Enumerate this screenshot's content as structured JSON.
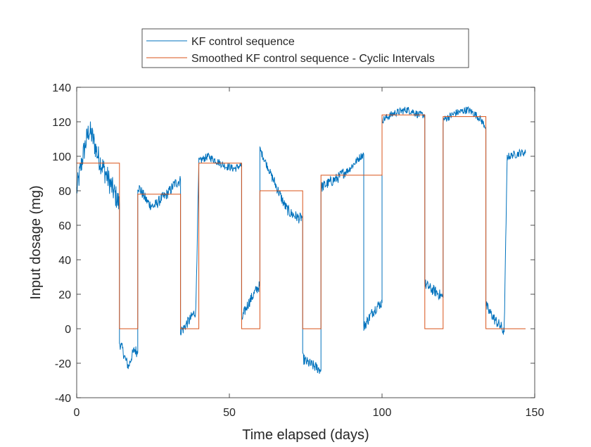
{
  "chart_data": {
    "type": "line",
    "xlabel": "Time elapsed (days)",
    "ylabel": "Input dosage (mg)",
    "xlim": [
      0,
      150
    ],
    "ylim": [
      -40,
      140
    ],
    "xticks": [
      0,
      50,
      100,
      150
    ],
    "yticks": [
      -40,
      -20,
      0,
      20,
      40,
      60,
      80,
      100,
      120,
      140
    ],
    "grid": false,
    "legend_position": "top-center",
    "series": [
      {
        "name": "KF control sequence",
        "color": "#0072BD",
        "noise": true,
        "x": [
          0,
          1,
          2,
          3,
          4,
          5,
          6,
          7,
          8,
          9,
          10,
          11,
          12,
          13,
          14,
          14.01,
          15,
          16,
          17,
          18,
          19,
          20,
          20.01,
          21,
          22,
          23,
          24,
          25,
          26,
          27,
          28,
          29,
          30,
          31,
          32,
          33,
          34,
          34.01,
          35,
          36,
          37,
          38,
          39,
          40,
          40.01,
          41,
          42,
          43,
          44,
          45,
          46,
          47,
          48,
          49,
          50,
          51,
          52,
          53,
          54,
          54.01,
          55,
          56,
          57,
          58,
          59,
          60,
          60.01,
          61,
          62,
          63,
          64,
          65,
          66,
          67,
          68,
          69,
          70,
          71,
          72,
          73,
          74,
          74.01,
          75,
          76,
          77,
          78,
          79,
          80,
          80.01,
          81,
          82,
          83,
          84,
          85,
          86,
          87,
          88,
          89,
          90,
          91,
          92,
          93,
          94,
          94.01,
          95,
          96,
          97,
          98,
          99,
          100,
          100.01,
          102,
          104,
          106,
          108,
          110,
          112,
          114,
          114.01,
          116,
          118,
          120,
          120.01,
          122,
          124,
          126,
          128,
          130,
          132,
          134,
          134.01,
          135,
          136,
          137,
          138,
          139,
          140,
          140.01,
          141,
          142,
          143,
          144,
          145,
          146,
          147
        ],
        "y": [
          80,
          90,
          100,
          108,
          115,
          112,
          106,
          100,
          96,
          92,
          88,
          84,
          80,
          76,
          72,
          -8,
          -12,
          -18,
          -22,
          -16,
          -12,
          -14,
          83,
          80,
          77,
          74,
          72,
          71,
          72,
          74,
          76,
          77,
          79,
          81,
          84,
          85,
          86,
          -1,
          0,
          3,
          5,
          8,
          10,
          96,
          97,
          98,
          99,
          100,
          99,
          98,
          97,
          96,
          95,
          94,
          94,
          93,
          93,
          94,
          95,
          5,
          10,
          14,
          17,
          20,
          23,
          25,
          104,
          100,
          96,
          92,
          88,
          84,
          80,
          76,
          72,
          69,
          67,
          66,
          65,
          64,
          65,
          -17,
          -19,
          -20,
          -21,
          -22,
          -23,
          -24,
          82,
          83,
          84,
          85,
          86,
          87,
          88,
          90,
          91,
          92,
          94,
          96,
          98,
          100,
          101,
          1,
          4,
          7,
          10,
          12,
          14,
          15,
          121,
          123,
          125,
          126,
          127,
          126,
          124,
          124,
          26,
          23,
          21,
          18,
          121,
          123,
          125,
          126,
          127,
          125,
          122,
          117,
          14,
          10,
          8,
          5,
          3,
          1,
          -2,
          0,
          100,
          100,
          101,
          101,
          102,
          102,
          102
        ]
      },
      {
        "name": "Smoothed KF control sequence - Cyclic Intervals",
        "color": "#D95319",
        "noise": false,
        "x": [
          0,
          14,
          14,
          20,
          20,
          34,
          34,
          40,
          40,
          54,
          54,
          60,
          60,
          74,
          74,
          80,
          80,
          100,
          100,
          114,
          114,
          120,
          120,
          134,
          134,
          147
        ],
        "y": [
          96,
          96,
          0,
          0,
          78,
          78,
          0,
          0,
          96,
          96,
          0,
          0,
          80,
          80,
          0,
          0,
          89,
          89,
          124,
          124,
          0,
          0,
          123,
          123,
          0,
          0
        ]
      }
    ]
  }
}
